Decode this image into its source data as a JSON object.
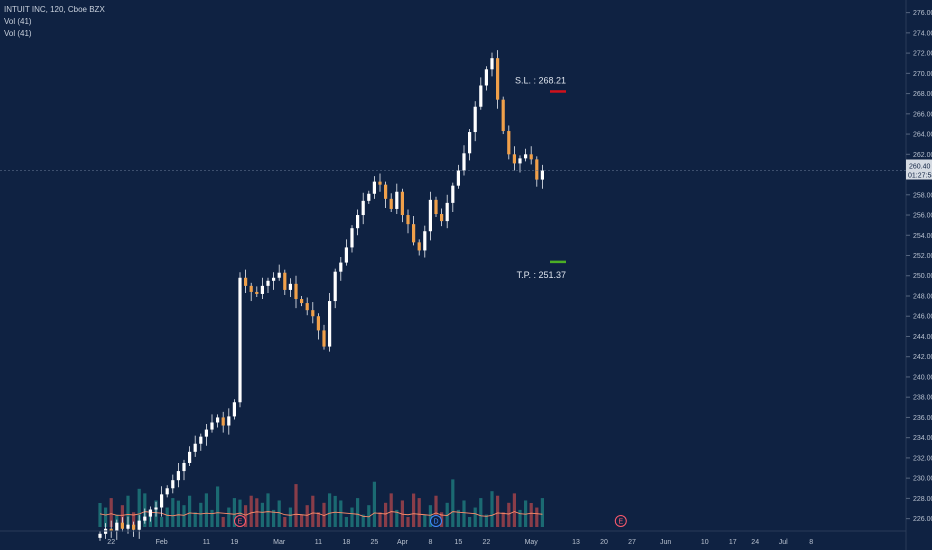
{
  "header": {
    "symbol_line": "INTUIT INC, 120, Cboe BZX",
    "indicator_1": "Vol (41)",
    "indicator_2": "Vol (41)"
  },
  "price_scale": {
    "ticks": [
      "278.00",
      "276.00",
      "274.00",
      "272.00",
      "270.00",
      "268.00",
      "266.00",
      "264.00",
      "262.00",
      "260.00",
      "258.00",
      "256.00",
      "254.00",
      "252.00",
      "250.00",
      "248.00",
      "246.00",
      "244.00",
      "242.00",
      "240.00",
      "238.00",
      "236.00",
      "234.00",
      "232.00",
      "230.00",
      "228.00",
      "226.00",
      "224.00"
    ],
    "last_price_label": "260.40",
    "countdown_label": "01:27:58"
  },
  "time_scale": {
    "labels": [
      {
        "text": "22",
        "idx": 2
      },
      {
        "text": "Feb",
        "idx": 11
      },
      {
        "text": "11",
        "idx": 19
      },
      {
        "text": "19",
        "idx": 24
      },
      {
        "text": "Mar",
        "idx": 32
      },
      {
        "text": "11",
        "idx": 39
      },
      {
        "text": "18",
        "idx": 44
      },
      {
        "text": "25",
        "idx": 49
      },
      {
        "text": "Apr",
        "idx": 54
      },
      {
        "text": "8",
        "idx": 59
      },
      {
        "text": "15",
        "idx": 64
      },
      {
        "text": "22",
        "idx": 69
      },
      {
        "text": "May",
        "idx": 77
      },
      {
        "text": "13",
        "idx": 85
      },
      {
        "text": "20",
        "idx": 90
      },
      {
        "text": "27",
        "idx": 95
      },
      {
        "text": "Jun",
        "idx": 101
      },
      {
        "text": "10",
        "idx": 108
      },
      {
        "text": "17",
        "idx": 113
      },
      {
        "text": "24",
        "idx": 117
      },
      {
        "text": "Jul",
        "idx": 122
      },
      {
        "text": "8",
        "idx": 127
      }
    ]
  },
  "levels": {
    "stop_loss": {
      "label": "S.L. : 268.21",
      "price": 268.21,
      "color": "#d0111b"
    },
    "take_profit": {
      "label": "T.P. : 251.37",
      "price": 251.37,
      "color": "#4caf25"
    }
  },
  "events": [
    {
      "letter": "E",
      "idx": 25,
      "color": "#ff5a6e"
    },
    {
      "letter": "D",
      "idx": 60,
      "color": "#3d8bff"
    },
    {
      "letter": "E",
      "idx": 93,
      "color": "#ff5a6e"
    }
  ],
  "chart_data": {
    "type": "candlestick",
    "title": "INTUIT INC, 120, Cboe BZX",
    "ylim": [
      223,
      279
    ],
    "y_ticks": [
      224,
      226,
      228,
      230,
      232,
      234,
      236,
      238,
      240,
      242,
      244,
      246,
      248,
      250,
      252,
      254,
      256,
      258,
      260,
      262,
      264,
      266,
      268,
      270,
      272,
      274,
      276,
      278
    ],
    "last_price": 260.4,
    "closes_approx": [
      224.5,
      225.0,
      224.8,
      225.6,
      225.0,
      225.4,
      224.9,
      225.8,
      226.2,
      226.9,
      227.1,
      228.4,
      229.0,
      229.8,
      230.7,
      231.5,
      232.6,
      233.4,
      234.1,
      234.8,
      235.5,
      236.0,
      235.2,
      236.1,
      237.5,
      249.8,
      249.0,
      248.4,
      248.2,
      249.0,
      249.5,
      249.8,
      250.3,
      248.6,
      249.2,
      247.7,
      247.3,
      246.6,
      246.0,
      244.6,
      243.0,
      247.5,
      250.4,
      251.3,
      252.8,
      254.7,
      256.0,
      257.4,
      258.1,
      259.3,
      259.0,
      257.6,
      256.6,
      258.3,
      256.0,
      255.1,
      253.3,
      252.5,
      254.4,
      257.5,
      256.1,
      255.4,
      257.2,
      258.9,
      260.4,
      262.1,
      264.2,
      266.7,
      268.8,
      270.4,
      271.5,
      267.4,
      264.3,
      262.0,
      261.1,
      261.6,
      262.0,
      261.5,
      259.5,
      260.4
    ],
    "volume_note": "volume histogram in bottom pane"
  }
}
